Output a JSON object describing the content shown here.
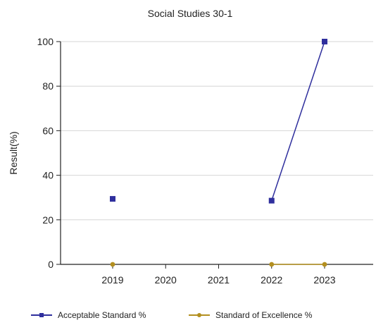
{
  "chart_data": {
    "type": "line",
    "title": "Social Studies 30-1",
    "xlabel": "",
    "ylabel": "Result(%)",
    "categories": [
      "2019",
      "2020",
      "2021",
      "2022",
      "2023"
    ],
    "ylim": [
      0,
      100
    ],
    "yticks": [
      0,
      20,
      40,
      60,
      80,
      100
    ],
    "grid": true,
    "legend_position": "bottom",
    "series": [
      {
        "name": "Acceptable Standard %",
        "color": "#2f2f9d",
        "marker": "square",
        "values": [
          29.4,
          null,
          null,
          28.6,
          100
        ]
      },
      {
        "name": "Standard of Excellence %",
        "color": "#b38f1f",
        "marker": "circle",
        "values": [
          0,
          null,
          null,
          0,
          0
        ]
      }
    ]
  }
}
